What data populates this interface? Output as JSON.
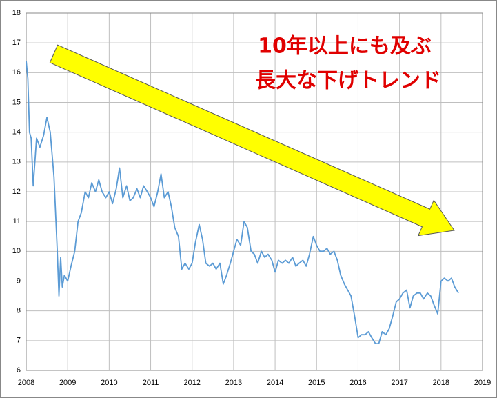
{
  "chart_data": {
    "type": "line",
    "annotations": [
      "10年以上にも及ぶ",
      "長大な下げトレンド"
    ],
    "xlim": [
      2008,
      2019
    ],
    "xticks": [
      2008,
      2009,
      2010,
      2011,
      2012,
      2013,
      2014,
      2015,
      2016,
      2017,
      2018,
      2019
    ],
    "ylim": [
      6,
      18
    ],
    "yticks": [
      6,
      7,
      8,
      9,
      10,
      11,
      12,
      13,
      14,
      15,
      16,
      17,
      18
    ],
    "grid": true,
    "x": [
      2008.0,
      2008.04,
      2008.08,
      2008.12,
      2008.17,
      2008.25,
      2008.33,
      2008.42,
      2008.5,
      2008.58,
      2008.67,
      2008.75,
      2008.79,
      2008.83,
      2008.87,
      2008.92,
      2009.0,
      2009.08,
      2009.17,
      2009.25,
      2009.33,
      2009.42,
      2009.5,
      2009.58,
      2009.67,
      2009.75,
      2009.83,
      2009.92,
      2010.0,
      2010.08,
      2010.17,
      2010.25,
      2010.33,
      2010.42,
      2010.5,
      2010.58,
      2010.67,
      2010.75,
      2010.83,
      2010.92,
      2011.0,
      2011.08,
      2011.17,
      2011.25,
      2011.33,
      2011.42,
      2011.5,
      2011.58,
      2011.67,
      2011.75,
      2011.83,
      2011.92,
      2012.0,
      2012.08,
      2012.17,
      2012.25,
      2012.33,
      2012.42,
      2012.5,
      2012.58,
      2012.67,
      2012.75,
      2012.83,
      2012.92,
      2013.0,
      2013.08,
      2013.17,
      2013.25,
      2013.33,
      2013.42,
      2013.5,
      2013.58,
      2013.67,
      2013.75,
      2013.83,
      2013.92,
      2014.0,
      2014.08,
      2014.17,
      2014.25,
      2014.33,
      2014.42,
      2014.5,
      2014.58,
      2014.67,
      2014.75,
      2014.83,
      2014.92,
      2015.0,
      2015.08,
      2015.17,
      2015.25,
      2015.33,
      2015.42,
      2015.5,
      2015.58,
      2015.67,
      2015.75,
      2015.83,
      2015.92,
      2016.0,
      2016.08,
      2016.17,
      2016.25,
      2016.33,
      2016.42,
      2016.5,
      2016.58,
      2016.67,
      2016.75,
      2016.83,
      2016.92,
      2017.0,
      2017.08,
      2017.17,
      2017.25,
      2017.33,
      2017.42,
      2017.5,
      2017.58,
      2017.67,
      2017.75,
      2017.83,
      2017.92,
      2018.0,
      2018.08,
      2018.17,
      2018.25,
      2018.33,
      2018.42
    ],
    "series": [
      {
        "color": "#5b9bd5",
        "values": [
          16.4,
          15.8,
          14.0,
          13.8,
          12.2,
          13.8,
          13.5,
          13.9,
          14.5,
          14.0,
          12.5,
          10.0,
          8.5,
          9.8,
          8.8,
          9.2,
          9.0,
          9.5,
          10.0,
          11.0,
          11.3,
          12.0,
          11.8,
          12.3,
          12.0,
          12.4,
          12.0,
          11.8,
          12.0,
          11.6,
          12.1,
          12.8,
          11.8,
          12.2,
          11.7,
          11.8,
          12.1,
          11.8,
          12.2,
          12.0,
          11.8,
          11.5,
          12.0,
          12.6,
          11.8,
          12.0,
          11.5,
          10.8,
          10.5,
          9.4,
          9.6,
          9.4,
          9.6,
          10.3,
          10.9,
          10.4,
          9.6,
          9.5,
          9.6,
          9.4,
          9.6,
          8.9,
          9.2,
          9.6,
          10.0,
          10.4,
          10.2,
          11.0,
          10.8,
          10.0,
          9.9,
          9.6,
          10.0,
          9.8,
          9.9,
          9.7,
          9.3,
          9.7,
          9.6,
          9.7,
          9.6,
          9.8,
          9.5,
          9.6,
          9.7,
          9.5,
          9.9,
          10.5,
          10.2,
          10.0,
          10.0,
          10.1,
          9.9,
          10.0,
          9.7,
          9.2,
          8.9,
          8.7,
          8.5,
          7.8,
          7.1,
          7.2,
          7.2,
          7.3,
          7.1,
          6.9,
          6.9,
          7.3,
          7.2,
          7.4,
          7.8,
          8.3,
          8.4,
          8.6,
          8.7,
          8.1,
          8.5,
          8.6,
          8.6,
          8.4,
          8.6,
          8.5,
          8.2,
          7.9,
          9.0,
          9.1,
          9.0,
          9.1,
          8.8,
          8.6
        ]
      }
    ]
  }
}
